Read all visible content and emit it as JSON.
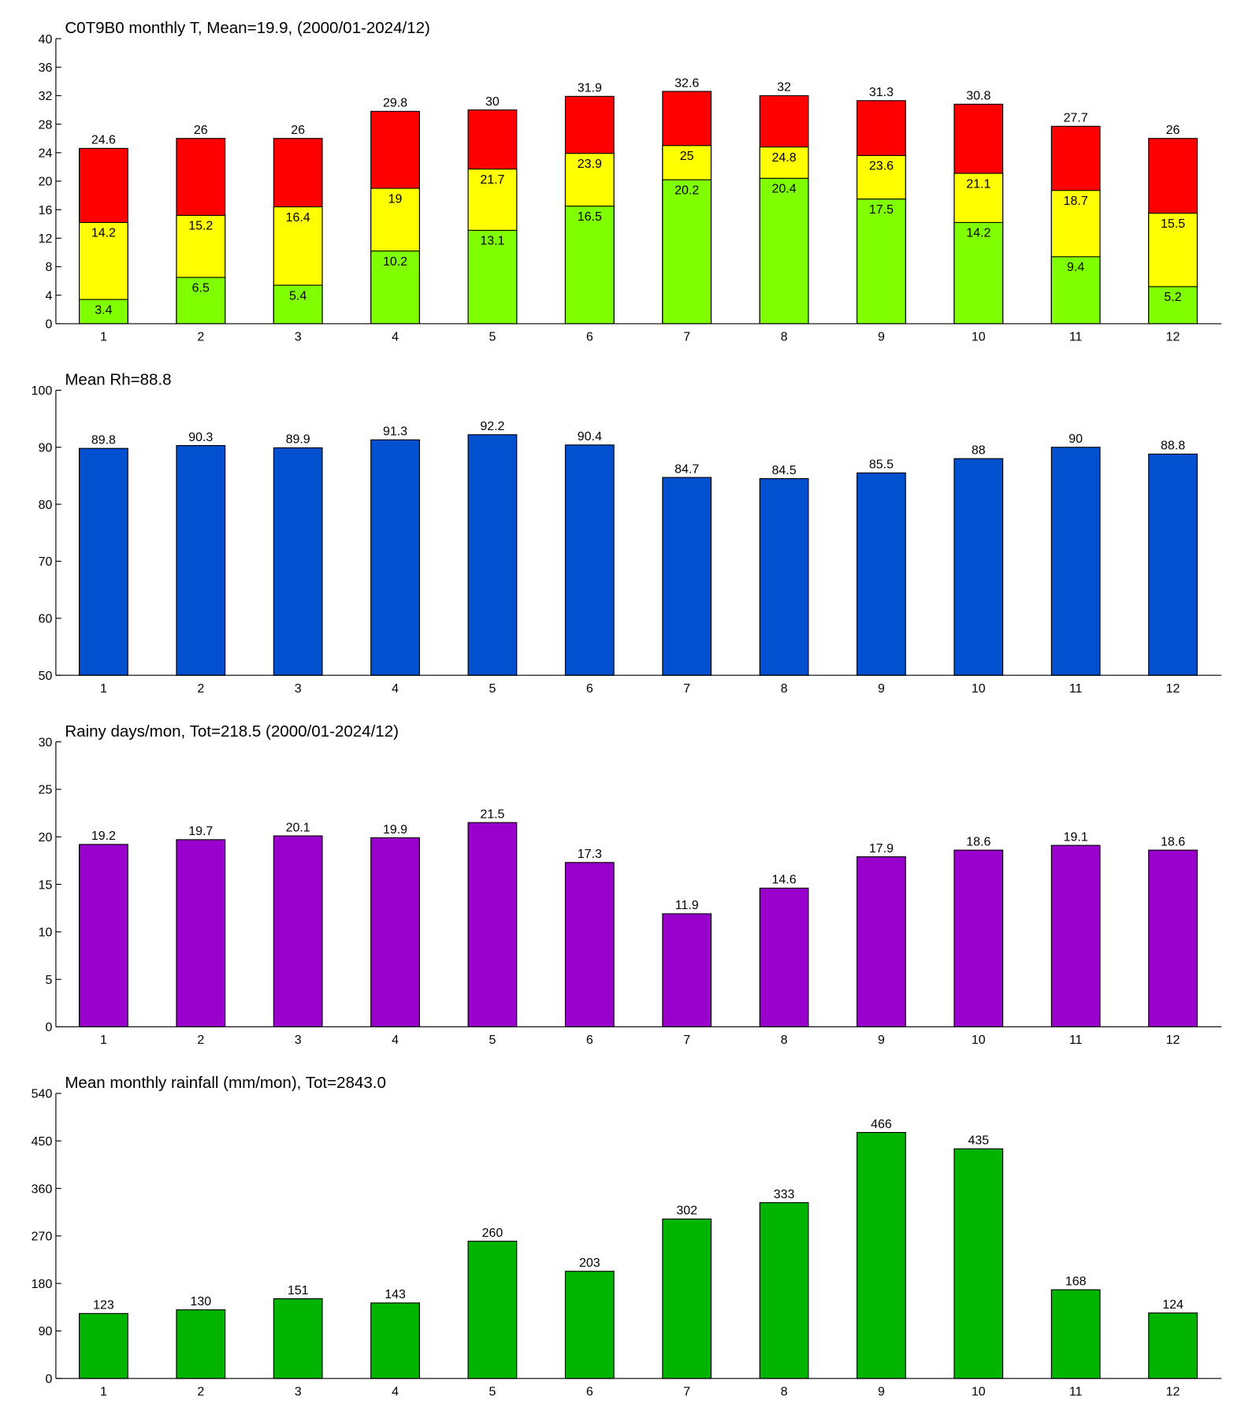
{
  "chart_data": [
    {
      "type": "bar",
      "overlay": true,
      "title": "C0T9B0 monthly T, Mean=19.9, (2000/01-2024/12)",
      "categories": [
        1,
        2,
        3,
        4,
        5,
        6,
        7,
        8,
        9,
        10,
        11,
        12
      ],
      "series": [
        {
          "color": "#ff0000",
          "values": [
            24.6,
            26,
            26,
            29.8,
            30,
            31.9,
            32.6,
            32,
            31.3,
            30.8,
            27.7,
            26
          ]
        },
        {
          "color": "#ffff00",
          "values": [
            14.2,
            15.2,
            16.4,
            19,
            21.7,
            23.9,
            25,
            24.8,
            23.6,
            21.1,
            18.7,
            15.5
          ]
        },
        {
          "color": "#80ff00",
          "values": [
            3.4,
            6.5,
            5.4,
            10.2,
            13.1,
            16.5,
            20.2,
            20.4,
            17.5,
            14.2,
            9.4,
            5.2
          ]
        }
      ],
      "ylim": [
        0,
        40
      ],
      "yticks": [
        0,
        4,
        8,
        12,
        16,
        20,
        24,
        28,
        32,
        36,
        40
      ]
    },
    {
      "type": "bar",
      "title": "Mean Rh=88.8",
      "categories": [
        1,
        2,
        3,
        4,
        5,
        6,
        7,
        8,
        9,
        10,
        11,
        12
      ],
      "series": [
        {
          "color": "#0050d0",
          "values": [
            89.8,
            90.3,
            89.9,
            91.3,
            92.2,
            90.4,
            84.7,
            84.5,
            85.5,
            88,
            90,
            88.8
          ]
        }
      ],
      "ylim": [
        50,
        100
      ],
      "yticks": [
        50,
        60,
        70,
        80,
        90,
        100
      ]
    },
    {
      "type": "bar",
      "title": "Rainy days/mon, Tot=218.5 (2000/01-2024/12)",
      "categories": [
        1,
        2,
        3,
        4,
        5,
        6,
        7,
        8,
        9,
        10,
        11,
        12
      ],
      "series": [
        {
          "color": "#9900cc",
          "values": [
            19.2,
            19.7,
            20.1,
            19.9,
            21.5,
            17.3,
            11.9,
            14.6,
            17.9,
            18.6,
            19.1,
            18.6
          ]
        }
      ],
      "ylim": [
        0,
        30
      ],
      "yticks": [
        0,
        5,
        10,
        15,
        20,
        25,
        30
      ]
    },
    {
      "type": "bar",
      "title": "Mean monthly rainfall (mm/mon), Tot=2843.0",
      "categories": [
        1,
        2,
        3,
        4,
        5,
        6,
        7,
        8,
        9,
        10,
        11,
        12
      ],
      "series": [
        {
          "color": "#00b400",
          "values": [
            123,
            130,
            151,
            143,
            260,
            203,
            302,
            333,
            466,
            435,
            168,
            124
          ]
        }
      ],
      "ylim": [
        0,
        540
      ],
      "yticks": [
        0,
        90,
        180,
        270,
        360,
        450,
        540
      ]
    }
  ]
}
